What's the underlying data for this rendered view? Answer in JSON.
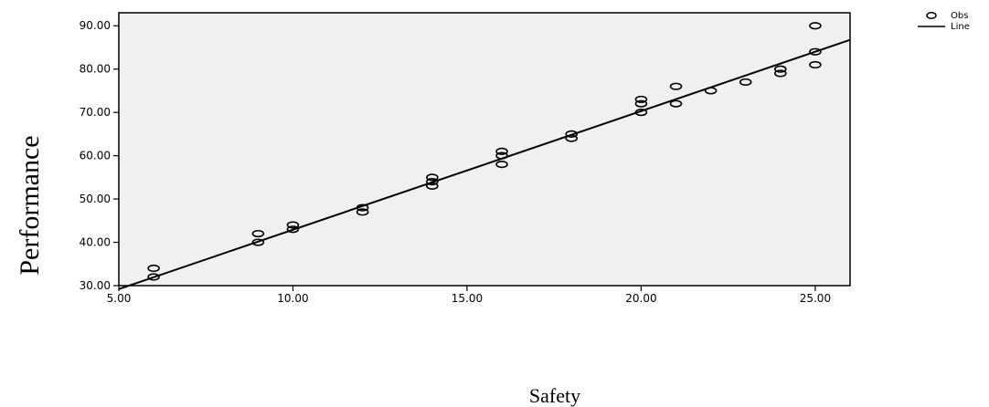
{
  "chart_data": {
    "type": "scatter",
    "title": "",
    "xlabel": "Safety",
    "ylabel": "Performance",
    "xlim": [
      5,
      26
    ],
    "ylim": [
      30,
      93
    ],
    "x_ticks": [
      "5.00",
      "10.00",
      "15.00",
      "20.00",
      "25.00"
    ],
    "x_tick_values": [
      5,
      10,
      15,
      20,
      25
    ],
    "y_ticks": [
      "30.00",
      "40.00",
      "50.00",
      "60.00",
      "70.00",
      "80.00",
      "90.00"
    ],
    "y_tick_values": [
      30,
      40,
      50,
      60,
      70,
      80,
      90
    ],
    "grid": false,
    "legend_position": "top-right",
    "plot_background": "#f0f0f0",
    "series": [
      {
        "name": "Obs",
        "kind": "points",
        "marker": "hollow-circle",
        "points": [
          [
            6,
            34
          ],
          [
            6,
            32
          ],
          [
            9,
            42
          ],
          [
            9,
            40
          ],
          [
            10,
            44
          ],
          [
            10,
            43
          ],
          [
            12,
            48
          ],
          [
            12,
            47
          ],
          [
            14,
            55
          ],
          [
            14,
            54
          ],
          [
            14,
            53
          ],
          [
            16,
            61
          ],
          [
            16,
            60
          ],
          [
            16,
            58
          ],
          [
            18,
            65
          ],
          [
            18,
            64
          ],
          [
            20,
            73
          ],
          [
            20,
            72
          ],
          [
            20,
            70
          ],
          [
            21,
            76
          ],
          [
            21,
            72
          ],
          [
            22,
            75
          ],
          [
            23,
            77
          ],
          [
            24,
            80
          ],
          [
            24,
            79
          ],
          [
            25,
            90
          ],
          [
            25,
            84
          ],
          [
            25,
            81
          ]
        ]
      },
      {
        "name": "Line",
        "kind": "fit-line",
        "intercept": 15.5,
        "slope": 2.74,
        "x_range": [
          5,
          26
        ]
      }
    ]
  }
}
